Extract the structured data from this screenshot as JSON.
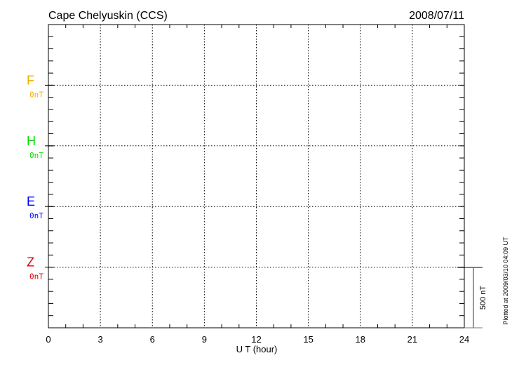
{
  "chart_data": {
    "type": "line",
    "title": "Cape Chelyuskin (CCS)",
    "date": "2008/07/11",
    "xlabel": "U T (hour)",
    "xlim": [
      0,
      24
    ],
    "xticks": [
      "0",
      "3",
      "6",
      "9",
      "12",
      "15",
      "18",
      "21",
      "24"
    ],
    "grid": true,
    "series": [
      {
        "name": "F",
        "baseline_label": "0nT",
        "color": "#f0b000",
        "values": []
      },
      {
        "name": "H",
        "baseline_label": "0nT",
        "color": "#00dd00",
        "values": []
      },
      {
        "name": "E",
        "baseline_label": "0nT",
        "color": "#0000ff",
        "values": []
      },
      {
        "name": "Z",
        "baseline_label": "0nT",
        "color": "#dd0000",
        "values": []
      }
    ],
    "scale_bar_label": "500 nT",
    "footnote": "Plotted at 2009/03/10 04:09 UT"
  }
}
